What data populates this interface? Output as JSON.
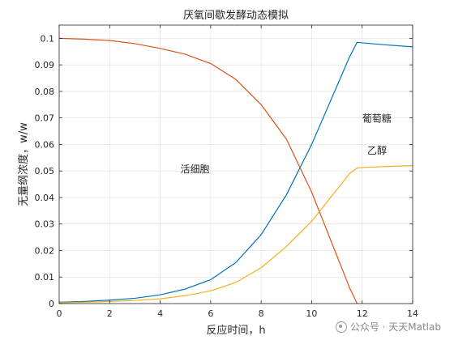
{
  "chart_data": {
    "type": "line",
    "title": "厌氧间歇发酵动态模拟",
    "xlabel": "反应时间，h",
    "ylabel": "无量纲浓度，w/w",
    "xlim": [
      0,
      14
    ],
    "ylim": [
      0,
      0.105
    ],
    "xticks": [
      0,
      2,
      4,
      6,
      8,
      10,
      12,
      14
    ],
    "yticks": [
      0,
      0.01,
      0.02,
      0.03,
      0.04,
      0.05,
      0.06,
      0.07,
      0.08,
      0.09,
      0.1
    ],
    "grid": true,
    "series": [
      {
        "name": "活细胞",
        "color": "#0072BD",
        "x": [
          0,
          1,
          2,
          3,
          4,
          5,
          6,
          7,
          8,
          9,
          10,
          11,
          11.5,
          11.8,
          12,
          13,
          14
        ],
        "y": [
          0.0005,
          0.0008,
          0.0013,
          0.002,
          0.0033,
          0.0055,
          0.009,
          0.0155,
          0.026,
          0.041,
          0.06,
          0.082,
          0.093,
          0.0985,
          0.0983,
          0.0975,
          0.0968
        ]
      },
      {
        "name": "葡萄糖",
        "color": "#D95319",
        "x": [
          0,
          1,
          2,
          3,
          4,
          5,
          6,
          7,
          8,
          9,
          10,
          10.5,
          11,
          11.5,
          11.8
        ],
        "y": [
          0.1,
          0.0997,
          0.0992,
          0.098,
          0.0962,
          0.094,
          0.0905,
          0.0845,
          0.075,
          0.062,
          0.042,
          0.03,
          0.018,
          0.006,
          0
        ]
      },
      {
        "name": "乙醇",
        "color": "#EDB120",
        "x": [
          0,
          1,
          2,
          3,
          4,
          5,
          6,
          7,
          8,
          9,
          10,
          11,
          11.5,
          11.8,
          12,
          13,
          14
        ],
        "y": [
          0.0003,
          0.0005,
          0.0008,
          0.0012,
          0.0018,
          0.003,
          0.0048,
          0.008,
          0.0135,
          0.0215,
          0.031,
          0.043,
          0.049,
          0.0511,
          0.0513,
          0.0517,
          0.052
        ]
      }
    ],
    "annotations": [
      {
        "text": "葡萄糖",
        "x": 12.0,
        "y": 0.0685
      },
      {
        "text": "乙醇",
        "x": 12.2,
        "y": 0.0565
      },
      {
        "text": "活细胞",
        "x": 4.8,
        "y": 0.0495
      }
    ]
  },
  "watermark": {
    "text": "公众号 · 天天Matlab",
    "icon": "wechat-icon"
  }
}
